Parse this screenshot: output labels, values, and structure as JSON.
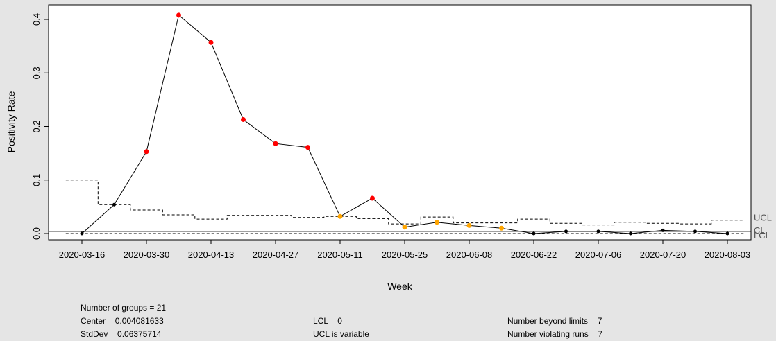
{
  "chart_data": {
    "type": "line",
    "chart_kind": "qcc p-chart",
    "title": "",
    "xlabel": "Week",
    "ylabel": "Positivity Rate",
    "ylim": [
      -0.005,
      0.42
    ],
    "y_ticks": [
      0.0,
      0.1,
      0.2,
      0.3,
      0.4
    ],
    "y_tick_labels": [
      "0.0",
      "0.1",
      "0.2",
      "0.3",
      "0.4"
    ],
    "x_tick_labels": [
      "2020-03-16",
      "2020-03-30",
      "2020-04-13",
      "2020-04-27",
      "2020-05-11",
      "2020-05-25",
      "2020-06-08",
      "2020-06-22",
      "2020-07-06",
      "2020-07-20",
      "2020-08-03"
    ],
    "categories": [
      "2020-03-16",
      "2020-03-23",
      "2020-03-30",
      "2020-04-06",
      "2020-04-13",
      "2020-04-20",
      "2020-04-27",
      "2020-05-04",
      "2020-05-11",
      "2020-05-18",
      "2020-05-25",
      "2020-06-01",
      "2020-06-08",
      "2020-06-15",
      "2020-06-22",
      "2020-06-29",
      "2020-07-06",
      "2020-07-13",
      "2020-07-20",
      "2020-07-27",
      "2020-08-03"
    ],
    "values": [
      0.0,
      0.054,
      0.153,
      0.408,
      0.357,
      0.213,
      0.168,
      0.161,
      0.032,
      0.066,
      0.012,
      0.021,
      0.015,
      0.01,
      0.0,
      0.004,
      0.004,
      0.0,
      0.006,
      0.004,
      0.0
    ],
    "point_status": [
      "normal",
      "normal",
      "beyond",
      "beyond",
      "beyond",
      "beyond",
      "beyond",
      "beyond",
      "run",
      "beyond",
      "run",
      "run",
      "run",
      "run",
      "normal",
      "normal",
      "normal",
      "normal",
      "normal",
      "normal",
      "normal"
    ],
    "ucl": [
      0.1,
      0.054,
      0.044,
      0.035,
      0.027,
      0.034,
      0.034,
      0.03,
      0.032,
      0.028,
      0.018,
      0.031,
      0.02,
      0.02,
      0.027,
      0.019,
      0.016,
      0.021,
      0.019,
      0.018,
      0.025
    ],
    "center": 0.004081633,
    "lcl": 0.0,
    "limit_labels": [
      "UCL",
      "CL",
      "LCL"
    ],
    "colors": {
      "normal": "#000000",
      "beyond": "#ff0000",
      "run": "#ffa500",
      "line": "#000000",
      "limits": "#000000",
      "labels": "#555555"
    },
    "grid": false
  },
  "stats": {
    "groups": "Number of groups = 21",
    "center": "Center = 0.004081633",
    "stddev": "StdDev = 0.06375714",
    "lcl": "LCL = 0",
    "ucl": "UCL is variable",
    "beyond": "Number beyond limits = 7",
    "runs": "Number violating runs = 7"
  }
}
